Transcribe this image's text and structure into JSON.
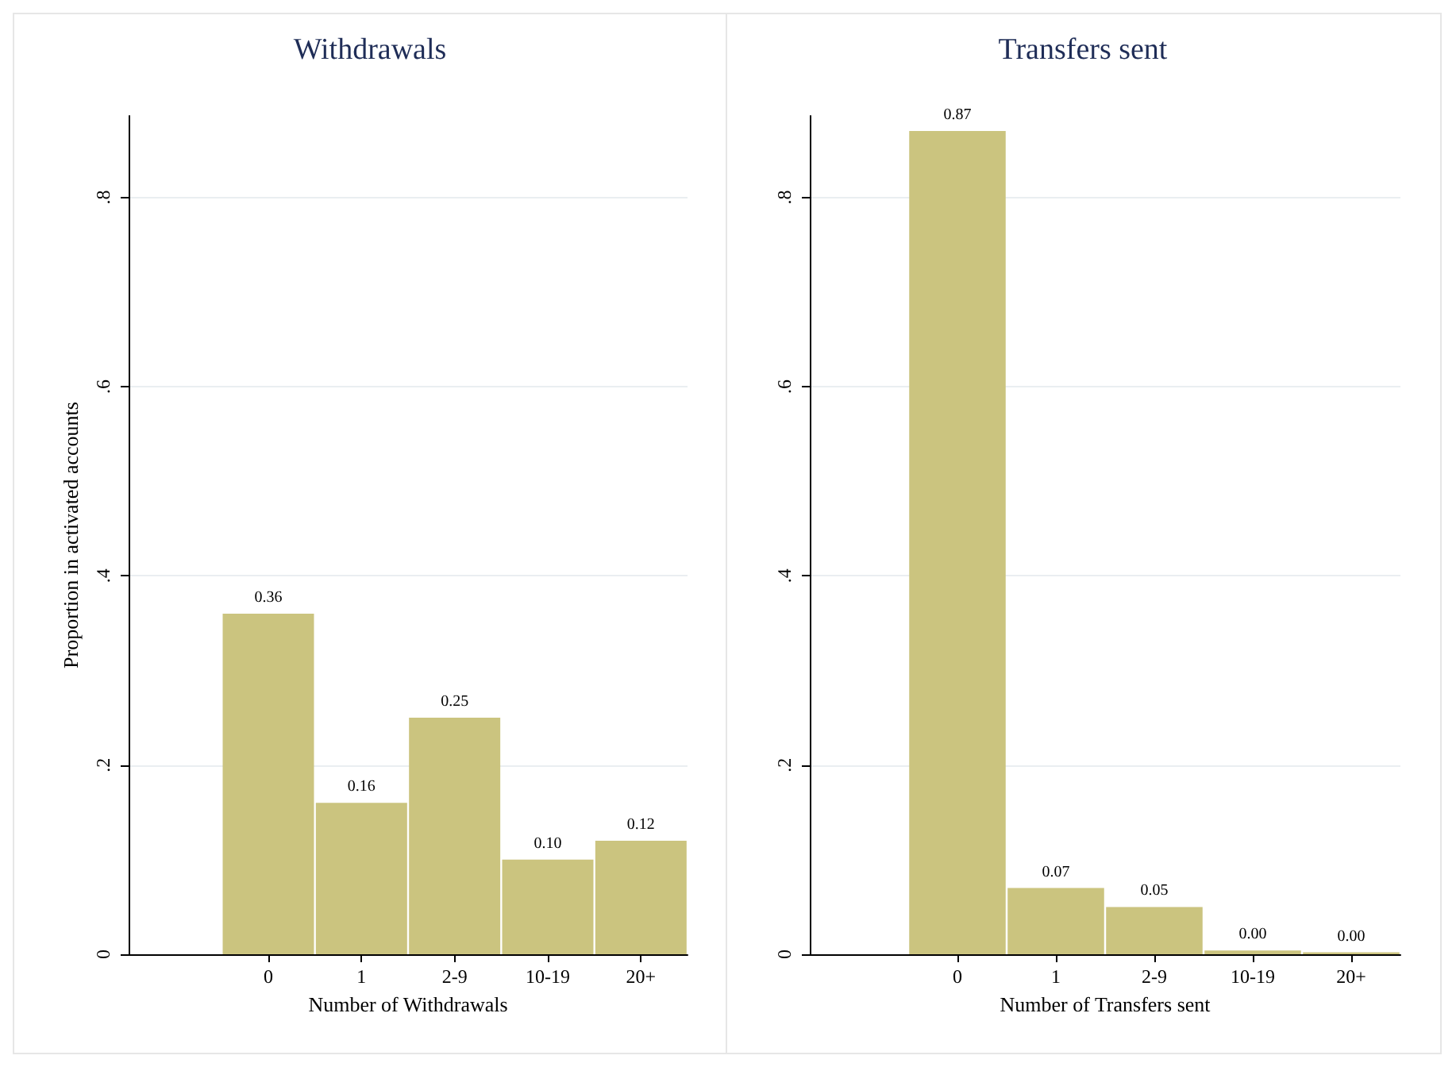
{
  "chart_data": [
    {
      "type": "bar",
      "title": "Withdrawals",
      "xlabel": "Number of Withdrawals",
      "ylabel": "Proportion in activated accounts",
      "categories": [
        "0",
        "1",
        "2-9",
        "10-19",
        "20+"
      ],
      "values": [
        0.36,
        0.16,
        0.25,
        0.1,
        0.12
      ],
      "value_labels": [
        "0.36",
        "0.16",
        "0.25",
        "0.10",
        "0.12"
      ],
      "color": "#cbc47f",
      "ylim": [
        0,
        0.886
      ],
      "yticks": [
        {
          "value": 0,
          "label": "0"
        },
        {
          "value": 0.2,
          "label": ".2"
        },
        {
          "value": 0.4,
          "label": ".4"
        },
        {
          "value": 0.6,
          "label": ".6"
        },
        {
          "value": 0.8,
          "label": ".8"
        }
      ],
      "grid": "y"
    },
    {
      "type": "bar",
      "title": "Transfers sent",
      "xlabel": "Number of Transfers sent",
      "categories": [
        "0",
        "1",
        "2-9",
        "10-19",
        "20+"
      ],
      "values": [
        0.87,
        0.07,
        0.05,
        0.004,
        0.002
      ],
      "value_labels": [
        "0.87",
        "0.07",
        "0.05",
        "0.00",
        "0.00"
      ],
      "color": "#cbc47f",
      "ylim": [
        0,
        0.886
      ],
      "yticks": [
        {
          "value": 0,
          "label": "0"
        },
        {
          "value": 0.2,
          "label": ".2"
        },
        {
          "value": 0.4,
          "label": ".4"
        },
        {
          "value": 0.6,
          "label": ".6"
        },
        {
          "value": 0.8,
          "label": ".8"
        }
      ],
      "grid": "y"
    }
  ]
}
